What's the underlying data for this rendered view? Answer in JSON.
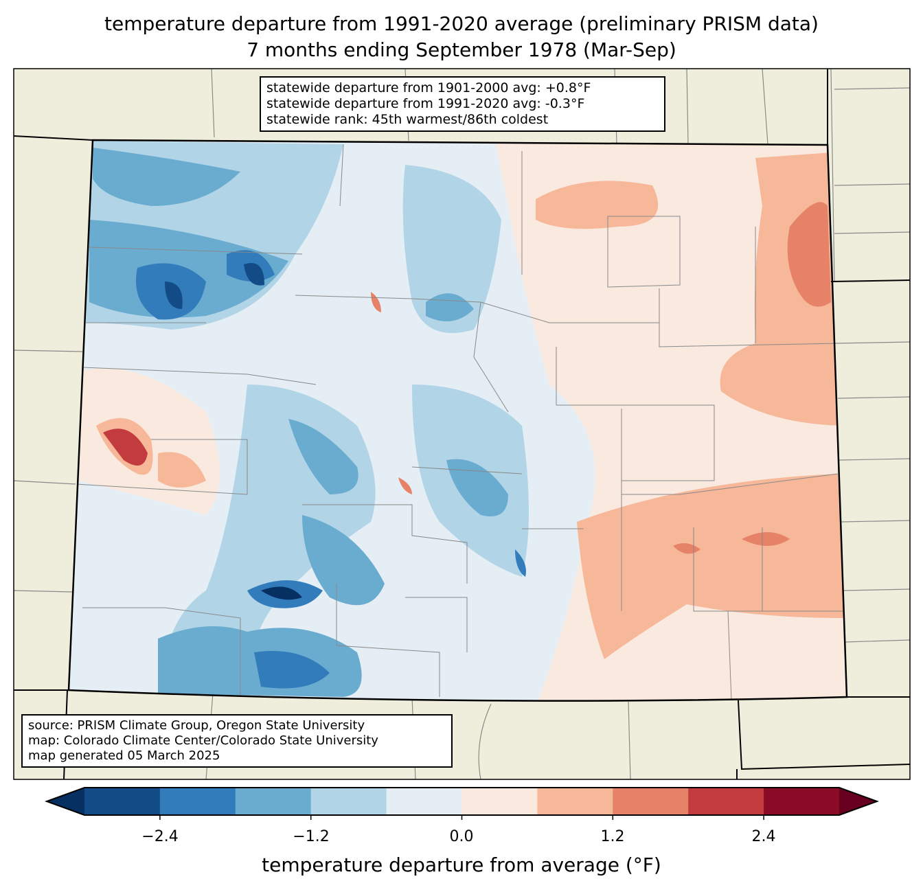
{
  "title": {
    "line1": "temperature departure from 1991-2020 average (preliminary PRISM data)",
    "line2": "7 months ending September 1978 (Mar-Sep)"
  },
  "stats": {
    "line1": "statewide departure from 1901-2000 avg: +0.8°F",
    "line2": "statewide departure from 1991-2020 avg: -0.3°F",
    "line3": "statewide rank: 45th warmest/86th coldest"
  },
  "credits": {
    "line1": "source: PRISM Climate Group, Oregon State University",
    "line2": "map: Colorado Climate Center/Colorado State University",
    "line3": "map generated 05 March 2025"
  },
  "colorbar": {
    "label": "temperature departure from average (°F)",
    "ticks": [
      "−2.4",
      "−1.2",
      "0.0",
      "1.2",
      "2.4"
    ],
    "levels": [
      -3.0,
      -2.4,
      -1.8,
      -1.2,
      -0.6,
      0.0,
      0.6,
      1.2,
      1.8,
      2.4,
      3.0
    ],
    "colors": [
      "#053061",
      "#134b87",
      "#327cbb",
      "#6aacd0",
      "#b1d5e7",
      "#e5eef4",
      "#f9e9df",
      "#f7b799",
      "#e58267",
      "#c23b3f",
      "#8a0b25",
      "#67001f"
    ]
  },
  "colors": {
    "land": "#efeedc",
    "base": "#e5eef4"
  }
}
